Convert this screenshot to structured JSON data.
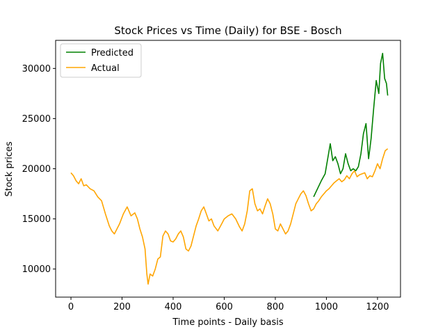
{
  "chart_data": {
    "type": "line",
    "title": "Stock Prices vs Time (Daily) for BSE - Bosch",
    "xlabel": "Time points - Daily basis",
    "ylabel": "Stock prices",
    "xlim": [
      -60,
      1290
    ],
    "ylim": [
      7200,
      32800
    ],
    "xticks": [
      0,
      200,
      400,
      600,
      800,
      1000,
      1200
    ],
    "yticks": [
      10000,
      15000,
      20000,
      25000,
      30000
    ],
    "grid": false,
    "legend": "upper-left",
    "series": [
      {
        "name": "Predicted",
        "color": "#008000",
        "x": [
          950,
          965,
          980,
          995,
          1005,
          1015,
          1025,
          1035,
          1045,
          1055,
          1065,
          1075,
          1085,
          1095,
          1105,
          1115,
          1125,
          1135,
          1145,
          1155,
          1165,
          1175,
          1185,
          1195,
          1205,
          1212,
          1220,
          1228,
          1235,
          1240
        ],
        "y": [
          17200,
          18000,
          18800,
          19500,
          21000,
          22500,
          20800,
          21200,
          20500,
          19500,
          20000,
          21500,
          20500,
          19800,
          20000,
          19800,
          20200,
          21500,
          23500,
          24500,
          21000,
          23000,
          26000,
          28800,
          27500,
          30500,
          31500,
          29000,
          28500,
          27300
        ]
      },
      {
        "name": "Actual",
        "color": "#ffa500",
        "x": [
          0,
          10,
          20,
          30,
          40,
          50,
          60,
          75,
          90,
          105,
          120,
          135,
          150,
          160,
          170,
          180,
          190,
          205,
          220,
          235,
          250,
          260,
          270,
          280,
          290,
          297,
          302,
          310,
          320,
          330,
          340,
          350,
          360,
          370,
          380,
          390,
          400,
          410,
          420,
          430,
          440,
          450,
          460,
          470,
          480,
          490,
          500,
          510,
          520,
          530,
          540,
          550,
          560,
          575,
          590,
          600,
          615,
          630,
          645,
          660,
          670,
          680,
          690,
          700,
          710,
          720,
          730,
          740,
          750,
          760,
          770,
          780,
          790,
          800,
          810,
          820,
          830,
          840,
          850,
          860,
          870,
          880,
          890,
          900,
          910,
          920,
          930,
          940,
          950,
          960,
          970,
          980,
          990,
          1000,
          1010,
          1020,
          1030,
          1040,
          1050,
          1060,
          1070,
          1080,
          1090,
          1100,
          1110,
          1120,
          1130,
          1140,
          1150,
          1160,
          1170,
          1180,
          1190,
          1200,
          1210,
          1220,
          1230,
          1240
        ],
        "y": [
          19600,
          19300,
          18800,
          18500,
          19000,
          18300,
          18400,
          18000,
          17800,
          17200,
          16800,
          15500,
          14300,
          13800,
          13500,
          14000,
          14500,
          15500,
          16200,
          15300,
          15600,
          15000,
          14000,
          13200,
          12000,
          9500,
          8500,
          9500,
          9300,
          10000,
          11000,
          11200,
          13300,
          13800,
          13500,
          12800,
          12700,
          13000,
          13500,
          13800,
          13200,
          12000,
          11800,
          12300,
          13300,
          14300,
          15000,
          15800,
          16200,
          15500,
          14800,
          15000,
          14300,
          13800,
          14500,
          15000,
          15300,
          15500,
          15000,
          14200,
          13800,
          14500,
          15800,
          17800,
          18000,
          16500,
          15800,
          16000,
          15500,
          16300,
          17000,
          16500,
          15500,
          14000,
          13800,
          14500,
          14000,
          13500,
          13800,
          14500,
          15500,
          16500,
          17000,
          17500,
          17800,
          17300,
          16500,
          15800,
          16000,
          16500,
          16800,
          17200,
          17500,
          17800,
          18000,
          18300,
          18600,
          18800,
          19000,
          18700,
          18900,
          19300,
          19000,
          19500,
          19800,
          19200,
          19400,
          19500,
          19600,
          19000,
          19300,
          19200,
          19800,
          20500,
          20000,
          21000,
          21800,
          22000
        ]
      }
    ]
  }
}
